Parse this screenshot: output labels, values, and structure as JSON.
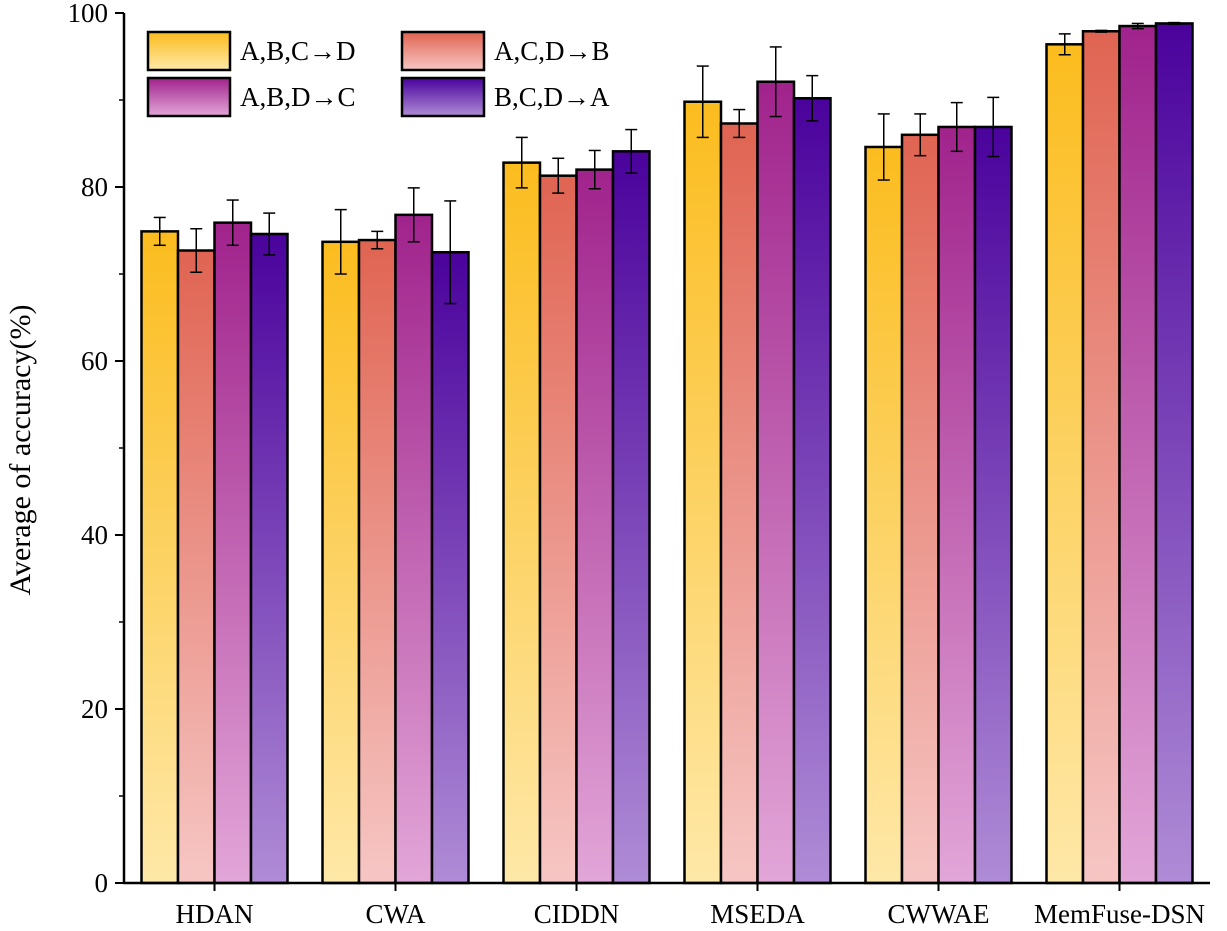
{
  "colors": {
    "series": [
      {
        "dark": "#FBBC1E",
        "light": "#FEE8A8"
      },
      {
        "dark": "#E06452",
        "light": "#F6C6C4"
      },
      {
        "dark": "#A0238C",
        "light": "#E2A6D8"
      },
      {
        "dark": "#4A029C",
        "light": "#AF8CD6"
      }
    ],
    "axis": "#000000",
    "error_bar": "#000000"
  },
  "chart_data": {
    "type": "bar",
    "title": "",
    "xlabel": "",
    "ylabel": "Average of accuracy(%)",
    "ylim": [
      0,
      100
    ],
    "yticks": [
      "0",
      "20",
      "40",
      "60",
      "80",
      "100"
    ],
    "categories": [
      "HDAN",
      "CWA",
      "CIDDN",
      "MSEDA",
      "CWWAE",
      "MemFuse-DSN"
    ],
    "series": [
      {
        "name": "A,B,C→D",
        "values": [
          74.9,
          73.7,
          82.8,
          89.8,
          84.6,
          96.4
        ],
        "errors": [
          1.6,
          3.7,
          2.9,
          4.1,
          3.8,
          1.2
        ]
      },
      {
        "name": "A,C,D→B",
        "values": [
          72.7,
          73.9,
          81.3,
          87.3,
          86.0,
          97.9
        ],
        "errors": [
          2.5,
          1.0,
          2.0,
          1.6,
          2.4,
          0.1
        ]
      },
      {
        "name": "A,B,D→C",
        "values": [
          75.9,
          76.8,
          82.0,
          92.1,
          86.9,
          98.5
        ],
        "errors": [
          2.6,
          3.1,
          2.2,
          4.0,
          2.8,
          0.3
        ]
      },
      {
        "name": "B,C,D→A",
        "values": [
          74.6,
          72.5,
          84.1,
          90.2,
          86.9,
          98.8
        ],
        "errors": [
          2.4,
          5.9,
          2.5,
          2.6,
          3.4,
          0.1
        ]
      }
    ],
    "legend_position": "top-left",
    "legend_columns": 2,
    "grid": false
  }
}
